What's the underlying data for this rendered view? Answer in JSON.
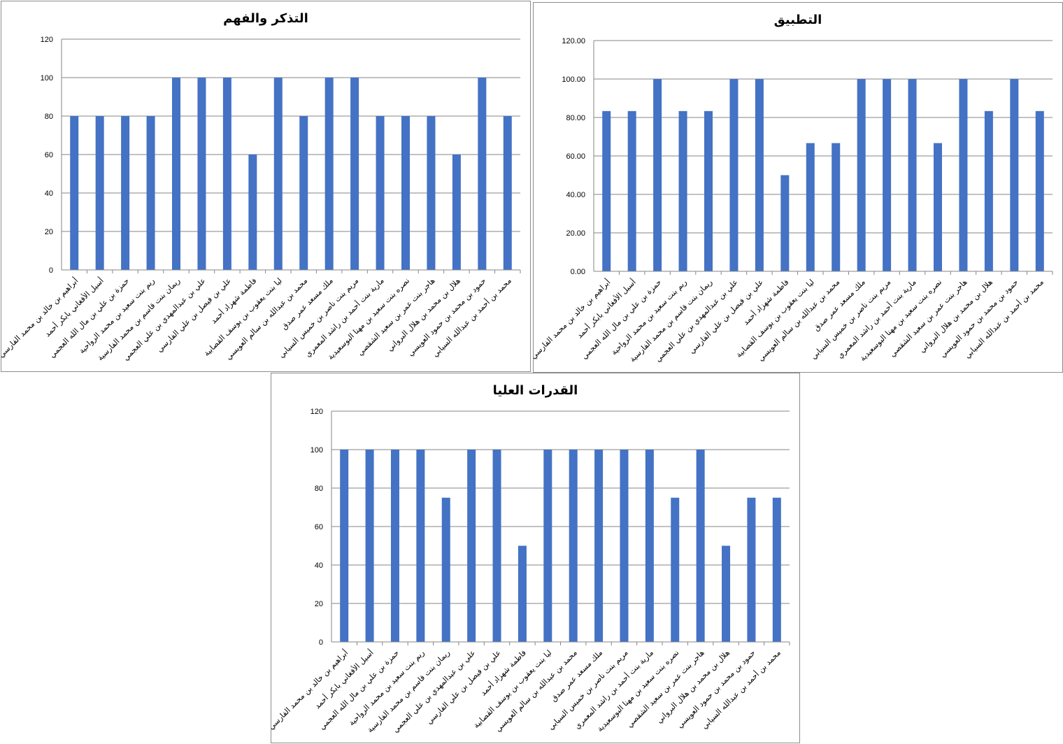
{
  "chart_data": [
    {
      "type": "bar",
      "title": "التذكر والفهم",
      "ylim": [
        0,
        120
      ],
      "ytick_step": 20,
      "tick_decimals": 0,
      "grid": true,
      "categories": [
        "أبراهيم بن خالد بن محمد الفارسي",
        "أسيل الأفغاني بابكر أحمد",
        "حمزة بن علي بن مال الله العجمي",
        "ريم بنت سعيد بن محمد الرواحية",
        "ريمان بنت قاسم بن محمد الفارسية",
        "علي بن عبدالمهدي بن علي العجمي",
        "علي بن فيصل بن علي الفارسي",
        "فاطمة شهزاد أحمد",
        "ليا بنت يعقوب بن يوسف القصابية",
        "محمد بن عبدالله بن سالم العويسي",
        "ملك مسعد عمر صدق",
        "مريم بنت ناصر بن خميس السيابي",
        "مارية بنت أحمد بن راشد المعمري",
        "نصره بنت سعيد بن مهنا البوسعيدية",
        "هاجر بنت عمر بن سعيد الشقصي",
        "هلال بن محمد بن هلال البرواني",
        "حمود بن محمد بن حمود العويسي",
        "محمد بن أحمد بن عبدالله السيابي"
      ],
      "values": [
        80,
        80,
        80,
        80,
        100,
        100,
        100,
        60,
        100,
        80,
        100,
        100,
        80,
        80,
        80,
        60,
        100,
        80
      ],
      "color": "#4472c4"
    },
    {
      "type": "bar",
      "title": "التطبيق",
      "ylim": [
        0,
        120
      ],
      "ytick_step": 20,
      "tick_decimals": 2,
      "grid": true,
      "categories": [
        "أبراهيم بن خالد بن محمد الفارسي",
        "أسيل الأفغاني بابكر أحمد",
        "حمزة بن علي بن مال الله العجمي",
        "ريم بنت سعيد بن محمد الرواحية",
        "ريمان بنت قاسم بن محمد الفارسية",
        "علي بن عبدالمهدي بن علي العجمي",
        "علي بن فيصل بن علي الفارسي",
        "فاطمة شهزاد أحمد",
        "ليا بنت يعقوب بن يوسف القصابية",
        "محمد بن عبدالله بن سالم العويسي",
        "ملك مسعد عمر صدق",
        "مريم بنت ناصر بن خميس السيابي",
        "مارية بنت أحمد بن راشد المعمري",
        "نصره بنت سعيد بن مهنا البوسعيدية",
        "هاجر بنت عمر بن سعيد الشقصي",
        "هلال بن محمد بن هلال البرواني",
        "حمود بن محمد بن حمود العويسي",
        "محمد بن أحمد بن عبدالله السيابي"
      ],
      "values": [
        83.33,
        83.33,
        100,
        83.33,
        83.33,
        100,
        100,
        50,
        66.67,
        66.67,
        100,
        100,
        100,
        66.67,
        100,
        83.33,
        100,
        83.33
      ],
      "color": "#4472c4"
    },
    {
      "type": "bar",
      "title": "القدرات العليا",
      "ylim": [
        0,
        120
      ],
      "ytick_step": 20,
      "tick_decimals": 0,
      "grid": true,
      "categories": [
        "أبراهيم بن خالد بن محمد الفارسي",
        "أسيل الأفغاني بابكر أحمد",
        "حمزة بن علي بن مال الله العجمي",
        "ريم بنت سعيد بن محمد الرواحية",
        "ريمان بنت قاسم بن محمد الفارسية",
        "علي بن عبدالمهدي بن علي العجمي",
        "علي بن فيصل بن علي الفارسي",
        "فاطمة شهزاد أحمد",
        "ليا بنت يعقوب بن يوسف القصابية",
        "محمد بن عبدالله بن سالم العويسي",
        "ملك مسعد عمر صدق",
        "مريم بنت ناصر بن خميس السيابي",
        "مارية بنت أحمد بن راشد المعمري",
        "نصره بنت سعيد بن مهنا البوسعيدية",
        "هاجر بنت عمر بن سعيد الشقصي",
        "هلال بن محمد بن هلال البرواني",
        "حمود بن محمد بن حمود العويسي",
        "محمد بن أحمد بن عبدالله السيابي"
      ],
      "values": [
        100,
        100,
        100,
        100,
        75,
        100,
        100,
        50,
        100,
        100,
        100,
        100,
        100,
        75,
        100,
        50,
        75,
        75
      ],
      "color": "#4472c4"
    }
  ]
}
